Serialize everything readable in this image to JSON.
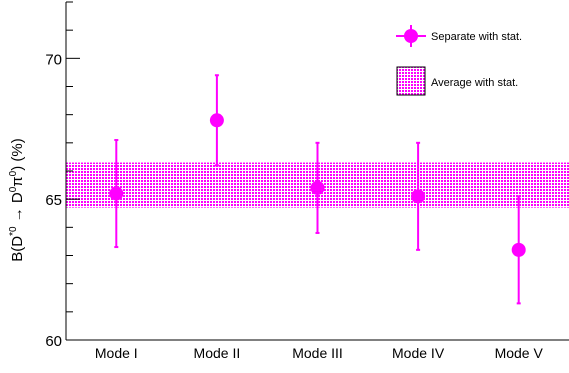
{
  "chart_data": {
    "type": "scatter",
    "xlabel": "",
    "ylabel": {
      "prefix": "B(D",
      "sup1": "*0",
      "arrow": " → D",
      "sup2": "0",
      "pi": "π",
      "sup3": "0",
      "suffix": ") (%)"
    },
    "ylim": [
      60,
      72
    ],
    "yticks": [
      "60",
      "65",
      "70"
    ],
    "grid": false,
    "legend_placement": "top-right",
    "categories": [
      "Mode I",
      "Mode II",
      "Mode III",
      "Mode IV",
      "Mode V"
    ],
    "series": [
      {
        "name": "Separate with stat.",
        "values": [
          65.2,
          67.8,
          65.4,
          65.1,
          63.2
        ],
        "err_low": [
          63.3,
          66.2,
          63.8,
          63.2,
          61.3
        ],
        "err_high": [
          67.1,
          69.4,
          67.0,
          67.0,
          65.1
        ]
      }
    ],
    "average": {
      "name": "Average with stat.",
      "low": 64.7,
      "high": 66.3
    },
    "color": "#ff00ff"
  }
}
